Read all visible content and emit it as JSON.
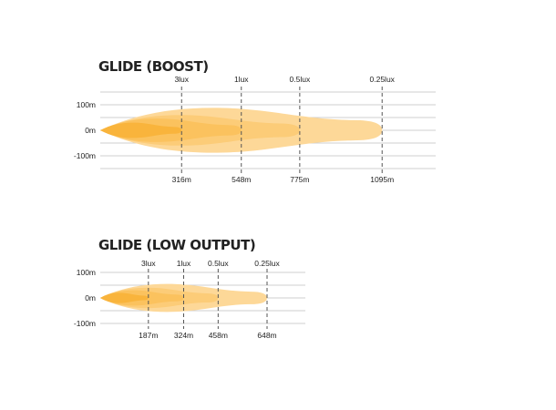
{
  "chart_data": [
    {
      "type": "area",
      "title": "GLIDE (BOOST)",
      "y_ticks": [
        "100m",
        "0m",
        "-100m"
      ],
      "y_values": [
        100,
        0,
        -100
      ],
      "x_max": 1300,
      "series": [
        {
          "name": "0.25lux",
          "distance": "1095m",
          "reach": 1095,
          "half_width_m": 88,
          "color": "#fdd898"
        },
        {
          "name": "0.5lux",
          "distance": "775m",
          "reach": 775,
          "half_width_m": 60,
          "color": "#fccc78"
        },
        {
          "name": "1lux",
          "distance": "548m",
          "reach": 548,
          "half_width_m": 46,
          "color": "#fbc25e"
        },
        {
          "name": "3lux",
          "distance": "316m",
          "reach": 316,
          "half_width_m": 30,
          "color": "#f9b43c"
        }
      ]
    },
    {
      "type": "area",
      "title": "GLIDE (LOW OUTPUT)",
      "y_ticks": [
        "100m",
        "0m",
        "-100m"
      ],
      "y_values": [
        100,
        0,
        -100
      ],
      "x_max": 800,
      "series": [
        {
          "name": "0.25lux",
          "distance": "648m",
          "reach": 648,
          "half_width_m": 55,
          "color": "#fdd898"
        },
        {
          "name": "0.5lux",
          "distance": "458m",
          "reach": 458,
          "half_width_m": 40,
          "color": "#fccc78"
        },
        {
          "name": "1lux",
          "distance": "324m",
          "reach": 324,
          "half_width_m": 30,
          "color": "#fbc25e"
        },
        {
          "name": "3lux",
          "distance": "187m",
          "reach": 187,
          "half_width_m": 20,
          "color": "#f9b43c"
        }
      ]
    }
  ]
}
